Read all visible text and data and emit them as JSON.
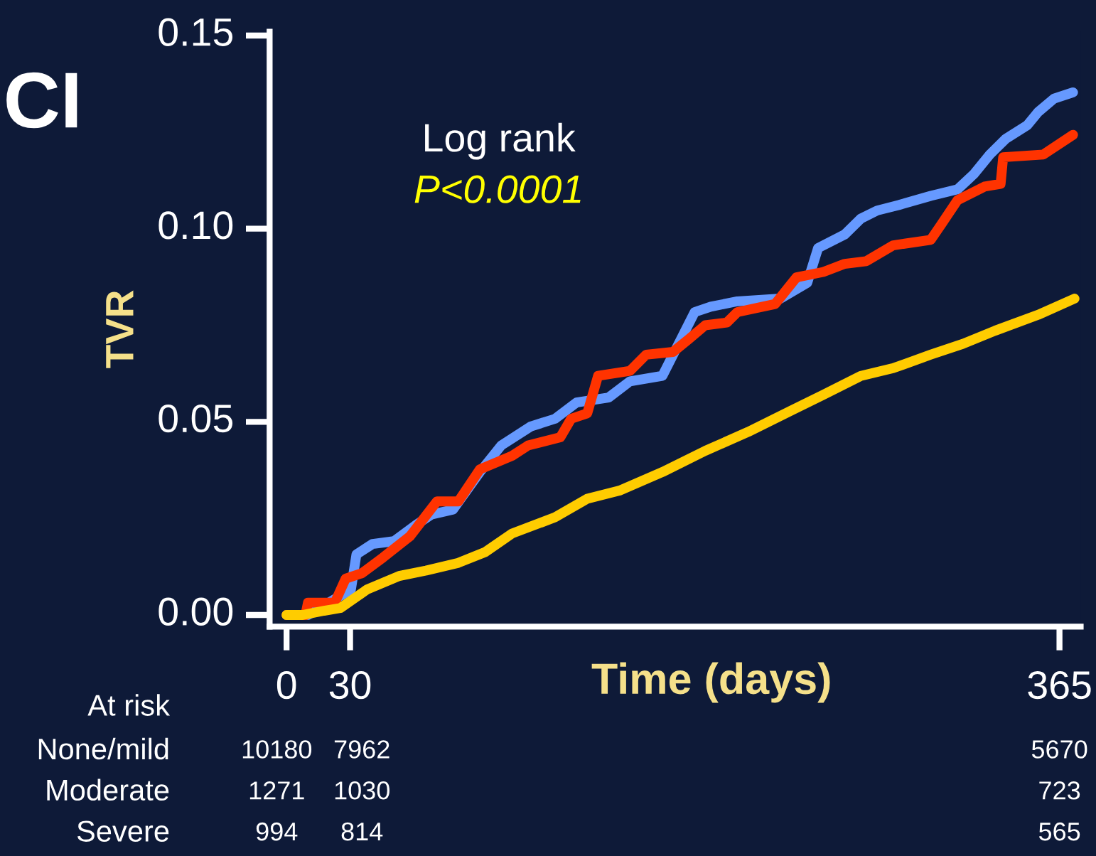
{
  "chart_data": {
    "type": "line",
    "ylabel": "TVR",
    "xlabel": "Time (days)",
    "xlim": [
      -8,
      375
    ],
    "ylim": [
      -0.003,
      0.151
    ],
    "xticks": [
      0,
      30,
      365
    ],
    "yticks": [
      {
        "value": 0,
        "label": "0.00"
      },
      {
        "value": 0.05,
        "label": "0.05"
      },
      {
        "value": 0.1,
        "label": "0.10"
      },
      {
        "value": 0.15,
        "label": "0.15"
      }
    ],
    "grid": false,
    "legend": false,
    "line_style": "solid",
    "marker": "none",
    "series": [
      {
        "color": "#6699ff",
        "x": [
          0,
          10.1,
          30.4,
          33.0,
          40.6,
          50.7,
          60.8,
          68.4,
          78.6,
          91.3,
          101.4,
          115.3,
          126.8,
          136.9,
          152.1,
          162.2,
          177.5,
          192.7,
          200.3,
          212.9,
          233.2,
          245.9,
          251.0,
          263.6,
          271.2,
          278.9,
          289.0,
          304.2,
          316.9,
          324.5,
          332.1,
          339.7,
          349.8,
          354.9,
          362.5,
          371.4
        ],
        "values": [
          0,
          0,
          0.0066,
          0.0157,
          0.0184,
          0.0191,
          0.0232,
          0.026,
          0.0273,
          0.037,
          0.0439,
          0.0488,
          0.0508,
          0.055,
          0.0563,
          0.0605,
          0.0619,
          0.0784,
          0.0798,
          0.0812,
          0.0819,
          0.086,
          0.095,
          0.0985,
          0.1026,
          0.1047,
          0.1061,
          0.1085,
          0.1102,
          0.1141,
          0.1192,
          0.1233,
          0.1268,
          0.1302,
          0.1337,
          0.1353
        ]
      },
      {
        "color": "#ff3300",
        "x": [
          0,
          8.9,
          10.1,
          22.8,
          27.9,
          35.5,
          45.6,
          58.3,
          71.0,
          81.1,
          91.3,
          106.5,
          114.1,
          129.3,
          134.4,
          142.0,
          147.1,
          162.2,
          169.8,
          182.5,
          190.1,
          197.7,
          207.9,
          212.9,
          230.7,
          240.8,
          253.5,
          263.6,
          273.8,
          286.5,
          304.2,
          309.3,
          316.9,
          329.6,
          337.2,
          338.4,
          357.4,
          371.4
        ],
        "values": [
          0,
          0,
          0.0032,
          0.0032,
          0.0094,
          0.0108,
          0.0149,
          0.0204,
          0.0294,
          0.0294,
          0.0377,
          0.0412,
          0.0439,
          0.046,
          0.0508,
          0.0522,
          0.0619,
          0.0632,
          0.0674,
          0.0681,
          0.0715,
          0.075,
          0.0757,
          0.0784,
          0.0805,
          0.0874,
          0.0888,
          0.0909,
          0.0916,
          0.0957,
          0.0971,
          0.1012,
          0.1074,
          0.1109,
          0.1116,
          0.1185,
          0.1192,
          0.1243
        ]
      },
      {
        "color": "#ffcc00",
        "x": [
          0,
          7.6,
          17.7,
          25.4,
          38.0,
          53.2,
          65.9,
          81.1,
          93.8,
          106.5,
          126.8,
          142.0,
          157.2,
          177.5,
          197.7,
          218.0,
          238.3,
          253.5,
          271.2,
          286.5,
          304.2,
          319.4,
          334.6,
          354.9,
          372.1
        ],
        "values": [
          0,
          0,
          0.0011,
          0.0018,
          0.0066,
          0.0101,
          0.0115,
          0.0135,
          0.0163,
          0.0211,
          0.0253,
          0.0301,
          0.0322,
          0.037,
          0.0425,
          0.0474,
          0.0529,
          0.057,
          0.0619,
          0.0639,
          0.0674,
          0.0702,
          0.0736,
          0.0777,
          0.0819
        ]
      }
    ],
    "annotations": [
      "CI",
      "Log rank",
      "P<0.0001",
      "At risk",
      "None/mild",
      "10180",
      "7962",
      "5670",
      "Moderate",
      "1271",
      "1030",
      "723",
      "Severe",
      "994",
      "814",
      "565"
    ]
  }
}
